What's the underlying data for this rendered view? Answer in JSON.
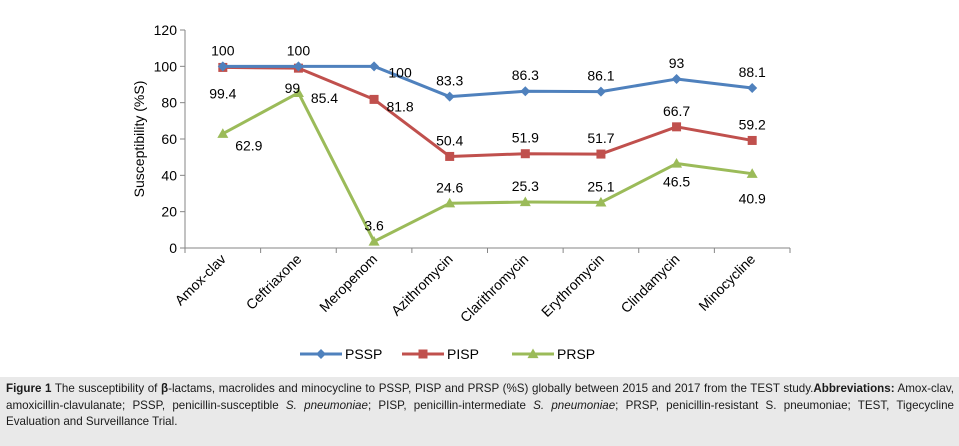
{
  "chart_data": {
    "type": "line",
    "ylabel": "Susceptibility (%S)",
    "ylim": [
      0,
      120
    ],
    "yticks": [
      0,
      20,
      40,
      60,
      80,
      100,
      120
    ],
    "grid": false,
    "legend_position": "bottom",
    "categories": [
      "Amox-clav",
      "Ceftriaxone",
      "Meropenom",
      "Azithromycin",
      "Clarithromycin",
      "Erythromycin",
      "Clindamycin",
      "Minocycline"
    ],
    "series": [
      {
        "name": "PSSP",
        "color": "#4f81bd",
        "marker": "diamond",
        "values": [
          100,
          100,
          100,
          83.3,
          86.3,
          86.1,
          93,
          88.1
        ],
        "labels": [
          "100",
          "100",
          "100",
          "83.3",
          "86.3",
          "86.1",
          "93",
          "88.1"
        ]
      },
      {
        "name": "PISP",
        "color": "#c0504d",
        "marker": "square",
        "values": [
          99.4,
          99,
          81.8,
          50.4,
          51.9,
          51.7,
          66.7,
          59.2
        ],
        "labels": [
          "99.4",
          "99",
          "81.8",
          "50.4",
          "51.9",
          "51.7",
          "66.7",
          "59.2"
        ]
      },
      {
        "name": "PRSP",
        "color": "#9bbb59",
        "marker": "triangle",
        "values": [
          62.9,
          85.4,
          3.6,
          24.6,
          25.3,
          25.1,
          46.5,
          40.9
        ],
        "labels": [
          "62.9",
          "85.4",
          "3.6",
          "24.6",
          "25.3",
          "25.1",
          "46.5",
          "40.9"
        ]
      }
    ]
  },
  "caption": {
    "figure_label": "Figure 1",
    "text_1": " The susceptibility of ",
    "beta": "β",
    "text_2": "-lactams, macrolides and minocycline to PSSP, PISP and PRSP (%S) globally between 2015 and 2017 from the TEST study.",
    "abbrev_label": "Abbreviations:",
    "abbrev_1": " Amox-clav, amoxicillin-clavulanate; PSSP, penicillin-susceptible ",
    "species_1": "S. pneumoniae",
    "abbrev_2": "; PISP, penicillin-intermediate ",
    "species_2": "S. pneumoniae",
    "abbrev_3": "; PRSP, penicillin-resistant S. pneumoniae; TEST, Tigecycline Evaluation and Surveillance Trial."
  }
}
